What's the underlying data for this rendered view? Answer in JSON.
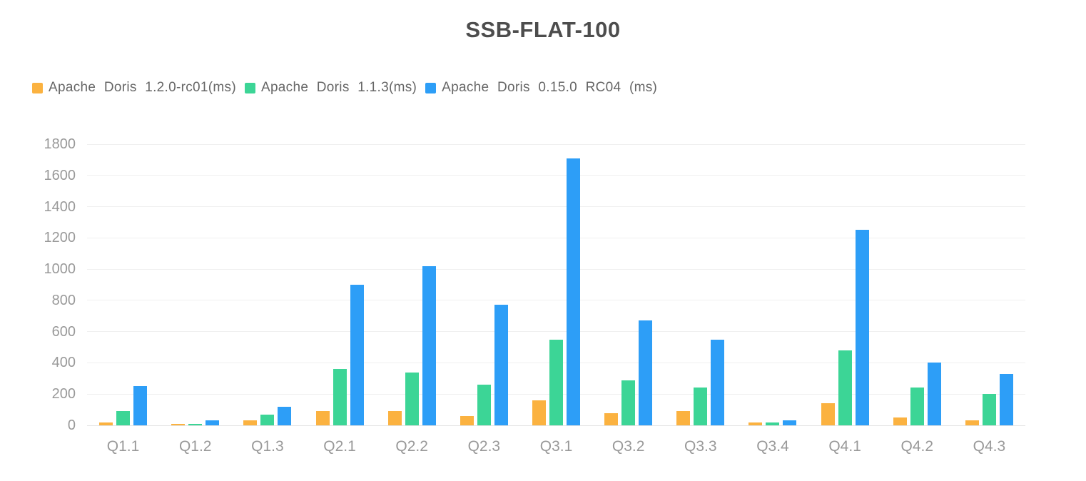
{
  "title": "SSB-FLAT-100",
  "chart_data": {
    "type": "bar",
    "title": "SSB-FLAT-100",
    "categories": [
      "Q1.1",
      "Q1.2",
      "Q1.3",
      "Q2.1",
      "Q2.2",
      "Q2.3",
      "Q3.1",
      "Q3.2",
      "Q3.3",
      "Q3.4",
      "Q4.1",
      "Q4.2",
      "Q4.3"
    ],
    "series": [
      {
        "name": "Apache Doris 1.2.0-rc01(ms)",
        "color": "#FBB240",
        "values": [
          20,
          10,
          30,
          90,
          90,
          60,
          160,
          80,
          90,
          20,
          140,
          50,
          30
        ]
      },
      {
        "name": "Apache Doris 1.1.3(ms)",
        "color": "#3CD596",
        "values": [
          90,
          10,
          70,
          360,
          340,
          260,
          550,
          290,
          240,
          20,
          480,
          240,
          200
        ]
      },
      {
        "name": "Apache Doris 0.15.0 RC04 (ms)",
        "color": "#2D9EF7",
        "values": [
          250,
          30,
          120,
          900,
          1020,
          770,
          1710,
          670,
          550,
          30,
          1250,
          400,
          330
        ]
      }
    ],
    "xlabel": "",
    "ylabel": "",
    "ylim": [
      0,
      1800
    ],
    "yticks": [
      0,
      200,
      400,
      600,
      800,
      1000,
      1200,
      1400,
      1600,
      1800
    ],
    "grid": true,
    "legend_position": "top-left"
  },
  "colors": {
    "title_text": "#4D4D4D",
    "axis_label_text": "#999999",
    "legend_text": "#666666",
    "gridline": "#F0F0F0",
    "baseline": "#E3E3E3",
    "background": "#FFFFFF"
  }
}
